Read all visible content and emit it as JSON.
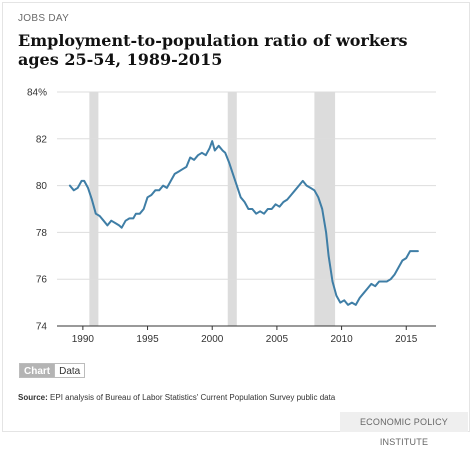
{
  "header": {
    "kicker": "JOBS DAY",
    "title": "Employment-to-population ratio of workers ages 25-54, 1989-2015"
  },
  "tabs": {
    "chart": "Chart",
    "data": "Data"
  },
  "source": {
    "label": "Source:",
    "text": " EPI analysis of  Bureau of Labor Statistics' Current Population Survey public data"
  },
  "brand": "ECONOMIC POLICY INSTITUTE",
  "colors": {
    "line": "#3f7ea6",
    "recession": "#dcdcdc",
    "grid": "#dddddd"
  },
  "chart_data": {
    "type": "line",
    "title": "Employment-to-population ratio of workers ages 25-54, 1989-2015",
    "xlabel": "",
    "ylabel": "",
    "xlim": [
      1988,
      2017.3
    ],
    "ylim": [
      74,
      84
    ],
    "x_ticks": [
      1990,
      1995,
      2000,
      2005,
      2010,
      2015
    ],
    "y_ticks": [
      {
        "value": 84,
        "label": "84%"
      },
      {
        "value": 82,
        "label": "82"
      },
      {
        "value": 80,
        "label": "80"
      },
      {
        "value": 78,
        "label": "78"
      },
      {
        "value": 76,
        "label": "76"
      },
      {
        "value": 74,
        "label": "74"
      }
    ],
    "grid": true,
    "recessions": [
      [
        1990.5,
        1991.2
      ],
      [
        2001.2,
        2001.9
      ],
      [
        2007.9,
        2009.5
      ]
    ],
    "series": [
      {
        "points": [
          [
            1989.0,
            80.0
          ],
          [
            1989.3,
            79.8
          ],
          [
            1989.6,
            79.9
          ],
          [
            1989.9,
            80.2
          ],
          [
            1990.1,
            80.2
          ],
          [
            1990.4,
            79.9
          ],
          [
            1990.7,
            79.4
          ],
          [
            1991.0,
            78.8
          ],
          [
            1991.3,
            78.7
          ],
          [
            1991.6,
            78.5
          ],
          [
            1991.9,
            78.3
          ],
          [
            1992.2,
            78.5
          ],
          [
            1992.5,
            78.4
          ],
          [
            1992.8,
            78.3
          ],
          [
            1993.0,
            78.2
          ],
          [
            1993.3,
            78.5
          ],
          [
            1993.6,
            78.6
          ],
          [
            1993.9,
            78.6
          ],
          [
            1994.1,
            78.8
          ],
          [
            1994.4,
            78.8
          ],
          [
            1994.7,
            79.0
          ],
          [
            1995.0,
            79.5
          ],
          [
            1995.3,
            79.6
          ],
          [
            1995.6,
            79.8
          ],
          [
            1995.9,
            79.8
          ],
          [
            1996.2,
            80.0
          ],
          [
            1996.5,
            79.9
          ],
          [
            1996.8,
            80.2
          ],
          [
            1997.1,
            80.5
          ],
          [
            1997.4,
            80.6
          ],
          [
            1997.7,
            80.7
          ],
          [
            1998.0,
            80.8
          ],
          [
            1998.3,
            81.2
          ],
          [
            1998.6,
            81.1
          ],
          [
            1998.9,
            81.3
          ],
          [
            1999.2,
            81.4
          ],
          [
            1999.5,
            81.3
          ],
          [
            1999.8,
            81.6
          ],
          [
            2000.0,
            81.9
          ],
          [
            2000.2,
            81.5
          ],
          [
            2000.5,
            81.7
          ],
          [
            2000.8,
            81.5
          ],
          [
            2001.0,
            81.4
          ],
          [
            2001.3,
            81.0
          ],
          [
            2001.6,
            80.5
          ],
          [
            2001.9,
            80.0
          ],
          [
            2002.2,
            79.5
          ],
          [
            2002.5,
            79.3
          ],
          [
            2002.8,
            79.0
          ],
          [
            2003.1,
            79.0
          ],
          [
            2003.4,
            78.8
          ],
          [
            2003.7,
            78.9
          ],
          [
            2004.0,
            78.8
          ],
          [
            2004.3,
            79.0
          ],
          [
            2004.6,
            79.0
          ],
          [
            2004.9,
            79.2
          ],
          [
            2005.2,
            79.1
          ],
          [
            2005.5,
            79.3
          ],
          [
            2005.8,
            79.4
          ],
          [
            2006.1,
            79.6
          ],
          [
            2006.4,
            79.8
          ],
          [
            2006.7,
            80.0
          ],
          [
            2007.0,
            80.2
          ],
          [
            2007.3,
            80.0
          ],
          [
            2007.6,
            79.9
          ],
          [
            2007.9,
            79.8
          ],
          [
            2008.2,
            79.5
          ],
          [
            2008.5,
            79.0
          ],
          [
            2008.8,
            78.0
          ],
          [
            2009.0,
            77.0
          ],
          [
            2009.3,
            75.9
          ],
          [
            2009.6,
            75.3
          ],
          [
            2009.9,
            75.0
          ],
          [
            2010.2,
            75.1
          ],
          [
            2010.5,
            74.9
          ],
          [
            2010.8,
            75.0
          ],
          [
            2011.1,
            74.9
          ],
          [
            2011.4,
            75.2
          ],
          [
            2011.7,
            75.4
          ],
          [
            2012.0,
            75.6
          ],
          [
            2012.3,
            75.8
          ],
          [
            2012.6,
            75.7
          ],
          [
            2012.9,
            75.9
          ],
          [
            2013.2,
            75.9
          ],
          [
            2013.5,
            75.9
          ],
          [
            2013.8,
            76.0
          ],
          [
            2014.1,
            76.2
          ],
          [
            2014.4,
            76.5
          ],
          [
            2014.7,
            76.8
          ],
          [
            2015.0,
            76.9
          ],
          [
            2015.3,
            77.2
          ],
          [
            2015.6,
            77.2
          ],
          [
            2015.9,
            77.2
          ]
        ]
      }
    ]
  }
}
